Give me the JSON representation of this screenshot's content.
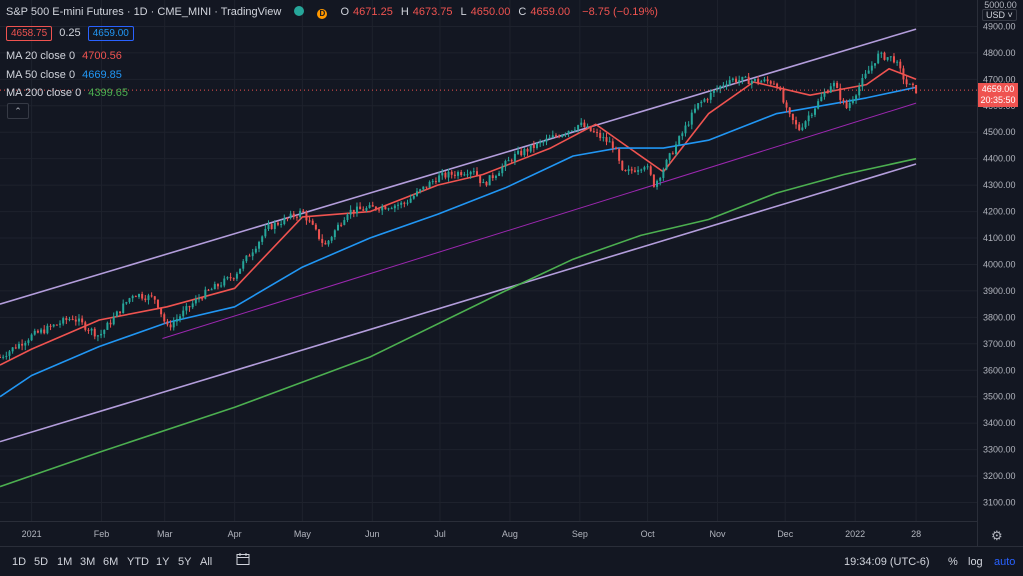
{
  "header": {
    "title": "S&P 500 E-mini Futures · 1D · CME_MINI · TradingView",
    "status_dot_color": "#26a69a",
    "delay_badge": "D",
    "ohlc": [
      {
        "k": "O",
        "v": "4671.25"
      },
      {
        "k": "H",
        "v": "4673.75"
      },
      {
        "k": "L",
        "v": "4650.00"
      },
      {
        "k": "C",
        "v": "4659.00"
      },
      {
        "k": "",
        "v": "−8.75 (−0.19%)"
      }
    ],
    "bid": "4658.75",
    "spread": "0.25",
    "ask": "4659.00"
  },
  "indicators": [
    {
      "label": "MA 20 close 0",
      "value": "4700.56",
      "color": "#ef5350"
    },
    {
      "label": "MA 50 close 0",
      "value": "4669.85",
      "color": "#2196f3"
    },
    {
      "label": "MA 200 close 0",
      "value": "4399.65",
      "color": "#4caf50"
    }
  ],
  "price_axis": {
    "top_label": "5000.00",
    "currency": "USD",
    "last_price": "4659.00",
    "countdown": "20:35:50"
  },
  "bottom": {
    "ranges": [
      "1D",
      "5D",
      "1M",
      "3M",
      "6M",
      "YTD",
      "1Y",
      "5Y",
      "All"
    ],
    "time": "19:34:09 (UTC-6)",
    "pct": "%",
    "log": "log",
    "auto": "auto"
  },
  "chart_data": {
    "type": "candlestick",
    "title": "S&P 500 E-mini Futures",
    "interval": "1D",
    "exchange": "CME_MINI",
    "ylim": [
      3030,
      5000
    ],
    "y_ticks": [
      3100,
      3200,
      3300,
      3400,
      3500,
      3600,
      3700,
      3800,
      3900,
      4000,
      4100,
      4200,
      4300,
      4400,
      4500,
      4600,
      4700,
      4800,
      4900
    ],
    "x_ticks": [
      "2021",
      "Feb",
      "Mar",
      "Apr",
      "May",
      "Jun",
      "Jul",
      "Aug",
      "Sep",
      "Oct",
      "Nov",
      "Dec",
      "2022",
      "28"
    ],
    "x_tick_days": [
      0,
      31,
      59,
      90,
      120,
      151,
      181,
      212,
      243,
      273,
      304,
      334,
      365,
      392
    ],
    "x_domain_days": [
      -14,
      419
    ],
    "grid": true,
    "price_anchors": [
      [
        -14,
        3650
      ],
      [
        0,
        3730
      ],
      [
        18,
        3800
      ],
      [
        30,
        3730
      ],
      [
        45,
        3890
      ],
      [
        55,
        3870
      ],
      [
        60,
        3760
      ],
      [
        75,
        3880
      ],
      [
        90,
        3960
      ],
      [
        105,
        4140
      ],
      [
        120,
        4200
      ],
      [
        130,
        4070
      ],
      [
        140,
        4200
      ],
      [
        165,
        4230
      ],
      [
        180,
        4330
      ],
      [
        196,
        4360
      ],
      [
        200,
        4300
      ],
      [
        214,
        4410
      ],
      [
        243,
        4530
      ],
      [
        258,
        4450
      ],
      [
        262,
        4340
      ],
      [
        272,
        4380
      ],
      [
        276,
        4300
      ],
      [
        295,
        4600
      ],
      [
        309,
        4700
      ],
      [
        330,
        4690
      ],
      [
        335,
        4570
      ],
      [
        340,
        4510
      ],
      [
        355,
        4690
      ],
      [
        361,
        4590
      ],
      [
        375,
        4790
      ],
      [
        382,
        4780
      ],
      [
        388,
        4680
      ],
      [
        392,
        4659
      ]
    ],
    "series": [
      {
        "name": "MA 20 close 0",
        "color": "#ef5350",
        "points": [
          [
            -14,
            3620
          ],
          [
            0,
            3680
          ],
          [
            30,
            3790
          ],
          [
            60,
            3840
          ],
          [
            90,
            3910
          ],
          [
            120,
            4180
          ],
          [
            150,
            4200
          ],
          [
            180,
            4300
          ],
          [
            200,
            4340
          ],
          [
            230,
            4440
          ],
          [
            250,
            4530
          ],
          [
            265,
            4440
          ],
          [
            280,
            4350
          ],
          [
            300,
            4570
          ],
          [
            320,
            4690
          ],
          [
            345,
            4640
          ],
          [
            370,
            4680
          ],
          [
            380,
            4740
          ],
          [
            392,
            4700
          ]
        ]
      },
      {
        "name": "MA 50 close 0",
        "color": "#2196f3",
        "points": [
          [
            -14,
            3500
          ],
          [
            0,
            3580
          ],
          [
            30,
            3690
          ],
          [
            60,
            3780
          ],
          [
            90,
            3840
          ],
          [
            120,
            3990
          ],
          [
            150,
            4100
          ],
          [
            180,
            4190
          ],
          [
            210,
            4290
          ],
          [
            240,
            4410
          ],
          [
            260,
            4440
          ],
          [
            280,
            4440
          ],
          [
            300,
            4470
          ],
          [
            330,
            4570
          ],
          [
            350,
            4600
          ],
          [
            370,
            4630
          ],
          [
            392,
            4670
          ]
        ]
      },
      {
        "name": "MA 200 close 0",
        "color": "#4caf50",
        "points": [
          [
            -14,
            3160
          ],
          [
            30,
            3290
          ],
          [
            90,
            3460
          ],
          [
            150,
            3650
          ],
          [
            210,
            3900
          ],
          [
            240,
            4020
          ],
          [
            270,
            4110
          ],
          [
            300,
            4170
          ],
          [
            330,
            4270
          ],
          [
            360,
            4340
          ],
          [
            392,
            4400
          ]
        ]
      }
    ],
    "trendlines": [
      {
        "name": "upper-channel",
        "color": "#b39ddb",
        "points": [
          [
            -14,
            3850
          ],
          [
            392,
            4890
          ]
        ]
      },
      {
        "name": "lower-channel",
        "color": "#b39ddb",
        "points": [
          [
            -14,
            3330
          ],
          [
            392,
            4380
          ]
        ]
      },
      {
        "name": "mid-support",
        "color": "#9c27b0",
        "points": [
          [
            58,
            3720
          ],
          [
            392,
            4610
          ]
        ]
      }
    ]
  }
}
